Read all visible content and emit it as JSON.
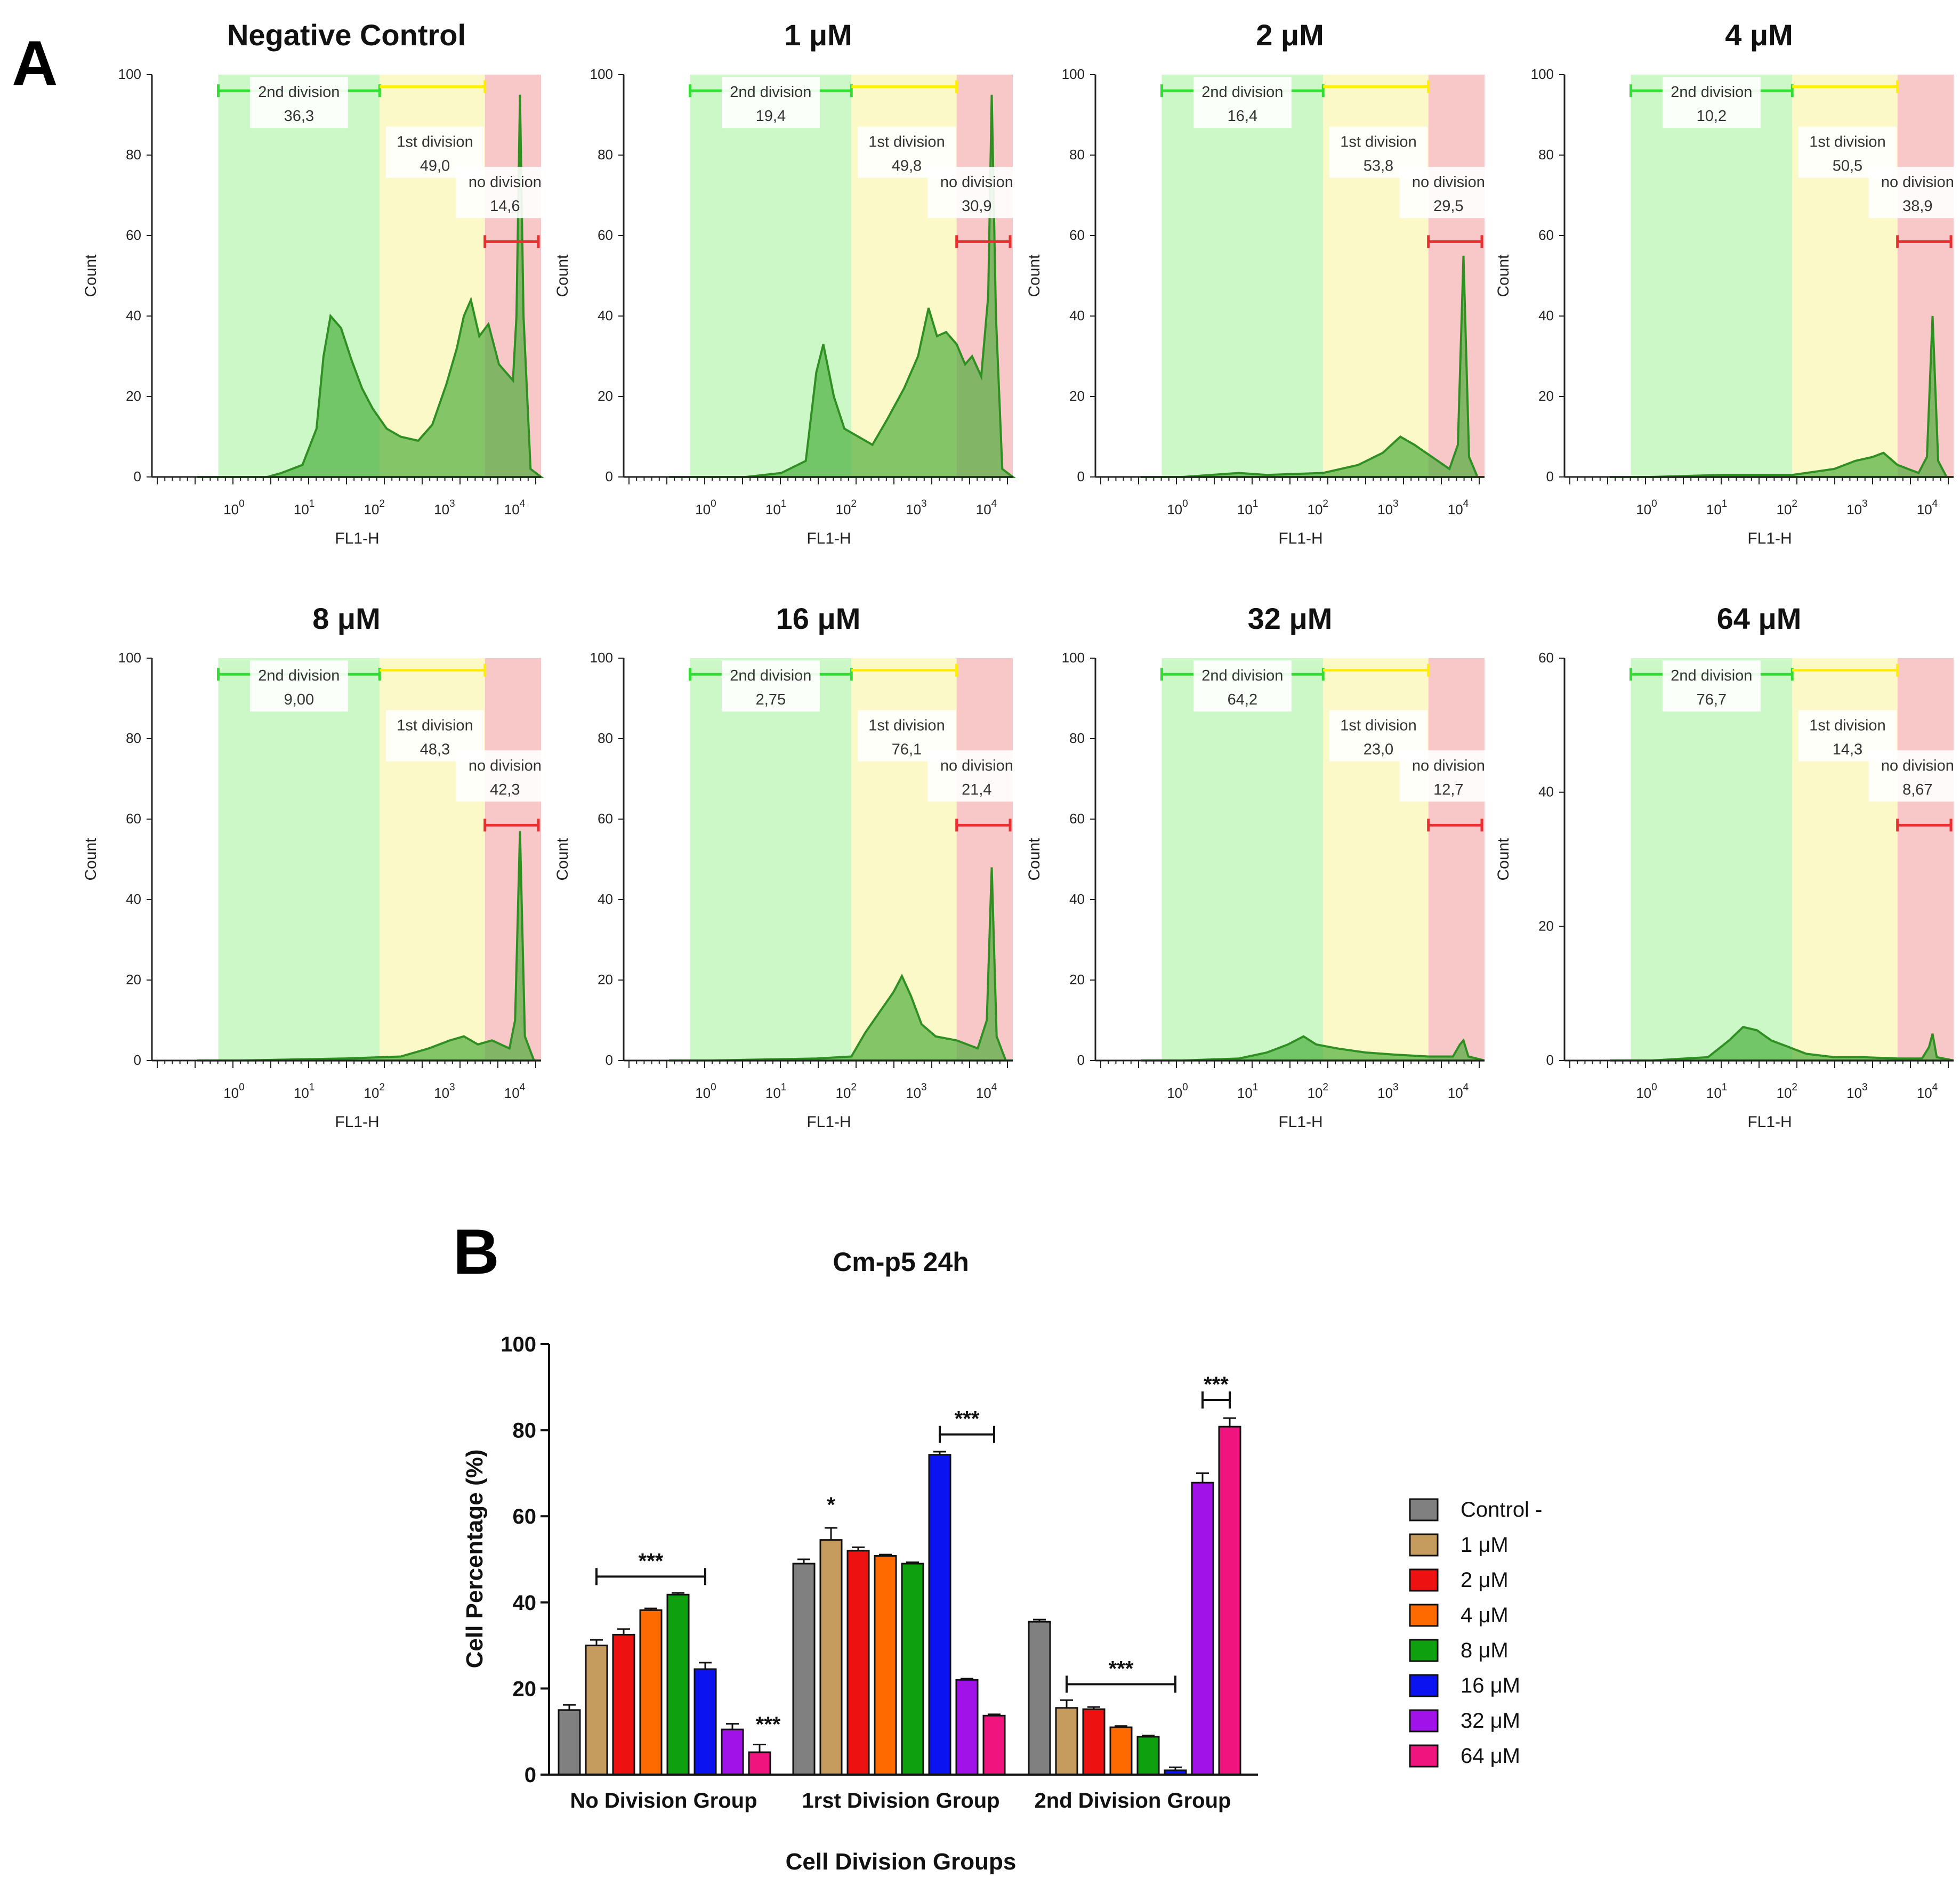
{
  "panel_a_label": "A",
  "panel_b_label": "B",
  "colors": {
    "gate_2nd_fill": "#ccf8c8",
    "gate_1st_fill": "#fbf9c8",
    "gate_none_fill": "#f8c8c8",
    "gate_2nd_line": "#33dd33",
    "gate_1st_line": "#ffee00",
    "gate_none_line": "#e83030",
    "histogram_fill": "#44aa33",
    "histogram_stroke": "#2f8f22"
  },
  "chart_data": [
    {
      "type": "histogram-panels",
      "xlabel": "FL1-H",
      "ylabel": "Count",
      "x_scale": "log",
      "x_ticks": [
        "10^0",
        "10^1",
        "10^2",
        "10^3",
        "10^4"
      ],
      "gate_labels": {
        "second": "2nd division",
        "first": "1st division",
        "none": "no division"
      },
      "panels": [
        {
          "title": "Negative Control",
          "ymax": 100,
          "yticks": [
            0,
            20,
            40,
            60,
            80,
            100
          ],
          "gates": {
            "second": "36,3",
            "first": "49,0",
            "none": "14,6"
          },
          "curve": [
            [
              -0.6,
              0
            ],
            [
              0,
              0
            ],
            [
              0.4,
              0
            ],
            [
              0.6,
              1
            ],
            [
              0.9,
              3
            ],
            [
              1.1,
              12
            ],
            [
              1.2,
              30
            ],
            [
              1.3,
              40
            ],
            [
              1.45,
              37
            ],
            [
              1.6,
              29
            ],
            [
              1.75,
              22
            ],
            [
              1.9,
              17
            ],
            [
              2.1,
              12
            ],
            [
              2.3,
              10
            ],
            [
              2.55,
              9
            ],
            [
              2.75,
              13
            ],
            [
              2.95,
              23
            ],
            [
              3.1,
              32
            ],
            [
              3.2,
              40
            ],
            [
              3.3,
              44
            ],
            [
              3.42,
              35
            ],
            [
              3.55,
              38
            ],
            [
              3.7,
              28
            ],
            [
              3.8,
              26
            ],
            [
              3.9,
              24
            ],
            [
              3.95,
              40
            ],
            [
              4.0,
              95
            ],
            [
              4.05,
              40
            ],
            [
              4.15,
              2
            ],
            [
              4.3,
              0
            ]
          ]
        },
        {
          "title": "1 μM",
          "ymax": 100,
          "yticks": [
            0,
            20,
            40,
            60,
            80,
            100
          ],
          "gates": {
            "second": "19,4",
            "first": "49,8",
            "none": "30,9"
          },
          "curve": [
            [
              -0.6,
              0
            ],
            [
              0,
              0
            ],
            [
              0.5,
              0
            ],
            [
              1.0,
              1
            ],
            [
              1.35,
              4
            ],
            [
              1.5,
              26
            ],
            [
              1.6,
              33
            ],
            [
              1.75,
              20
            ],
            [
              1.9,
              12
            ],
            [
              2.1,
              10
            ],
            [
              2.3,
              8
            ],
            [
              2.5,
              14
            ],
            [
              2.75,
              22
            ],
            [
              2.95,
              30
            ],
            [
              3.1,
              42
            ],
            [
              3.22,
              35
            ],
            [
              3.35,
              36
            ],
            [
              3.5,
              33
            ],
            [
              3.62,
              28
            ],
            [
              3.72,
              30
            ],
            [
              3.85,
              25
            ],
            [
              3.95,
              45
            ],
            [
              4.0,
              95
            ],
            [
              4.06,
              40
            ],
            [
              4.15,
              2
            ],
            [
              4.3,
              0
            ]
          ]
        },
        {
          "title": "2 μM",
          "ymax": 100,
          "yticks": [
            0,
            20,
            40,
            60,
            80,
            100
          ],
          "gates": {
            "second": "16,4",
            "first": "53,8",
            "none": "29,5"
          },
          "curve": [
            [
              -0.6,
              0
            ],
            [
              0,
              0
            ],
            [
              0.8,
              1
            ],
            [
              1.2,
              0.5
            ],
            [
              2.0,
              1
            ],
            [
              2.5,
              3
            ],
            [
              2.85,
              6
            ],
            [
              3.1,
              10
            ],
            [
              3.3,
              8
            ],
            [
              3.55,
              5
            ],
            [
              3.8,
              2
            ],
            [
              3.92,
              8
            ],
            [
              4.0,
              55
            ],
            [
              4.08,
              5
            ],
            [
              4.2,
              0
            ],
            [
              4.3,
              0
            ]
          ]
        },
        {
          "title": "4 μM",
          "ymax": 100,
          "yticks": [
            0,
            20,
            40,
            60,
            80,
            100
          ],
          "gates": {
            "second": "10,2",
            "first": "50,5",
            "none": "38,9"
          },
          "curve": [
            [
              -0.6,
              0
            ],
            [
              0,
              0
            ],
            [
              1.0,
              0.5
            ],
            [
              2.0,
              0.5
            ],
            [
              2.6,
              2
            ],
            [
              2.9,
              4
            ],
            [
              3.15,
              5
            ],
            [
              3.3,
              6
            ],
            [
              3.5,
              3
            ],
            [
              3.8,
              1
            ],
            [
              3.92,
              5
            ],
            [
              4.0,
              40
            ],
            [
              4.08,
              4
            ],
            [
              4.2,
              0
            ],
            [
              4.3,
              0
            ]
          ]
        }
      ]
    },
    {
      "type": "histogram-panels",
      "xlabel": "FL1-H",
      "ylabel": "Count",
      "x_scale": "log",
      "x_ticks": [
        "10^0",
        "10^1",
        "10^2",
        "10^3",
        "10^4"
      ],
      "gate_labels": {
        "second": "2nd division",
        "first": "1st division",
        "none": "no division"
      },
      "panels": [
        {
          "title": "8 μM",
          "ymax": 100,
          "yticks": [
            0,
            20,
            40,
            60,
            80,
            100
          ],
          "gates": {
            "second": "9,00",
            "first": "48,3",
            "none": "42,3"
          },
          "curve": [
            [
              -0.6,
              0
            ],
            [
              0,
              0
            ],
            [
              1.5,
              0.5
            ],
            [
              2.3,
              1
            ],
            [
              2.7,
              3
            ],
            [
              3.0,
              5
            ],
            [
              3.2,
              6
            ],
            [
              3.4,
              4
            ],
            [
              3.6,
              5
            ],
            [
              3.85,
              3
            ],
            [
              3.93,
              10
            ],
            [
              4.0,
              57
            ],
            [
              4.07,
              6
            ],
            [
              4.2,
              0
            ],
            [
              4.3,
              0
            ]
          ]
        },
        {
          "title": "16 μM",
          "ymax": 100,
          "yticks": [
            0,
            20,
            40,
            60,
            80,
            100
          ],
          "gates": {
            "second": "2,75",
            "first": "76,1",
            "none": "21,4"
          },
          "curve": [
            [
              -0.6,
              0
            ],
            [
              0,
              0
            ],
            [
              1.5,
              0.5
            ],
            [
              2.0,
              1
            ],
            [
              2.2,
              7
            ],
            [
              2.4,
              12
            ],
            [
              2.6,
              17
            ],
            [
              2.72,
              21
            ],
            [
              2.85,
              16
            ],
            [
              3.0,
              9
            ],
            [
              3.2,
              6
            ],
            [
              3.5,
              5
            ],
            [
              3.8,
              3
            ],
            [
              3.93,
              10
            ],
            [
              4.0,
              48
            ],
            [
              4.07,
              6
            ],
            [
              4.2,
              0
            ],
            [
              4.3,
              0
            ]
          ]
        },
        {
          "title": "32 μM",
          "ymax": 100,
          "yticks": [
            0,
            20,
            40,
            60,
            80,
            100
          ],
          "gates": {
            "second": "64,2",
            "first": "23,0",
            "none": "12,7"
          },
          "curve": [
            [
              -0.6,
              0
            ],
            [
              0,
              0
            ],
            [
              0.8,
              0.5
            ],
            [
              1.2,
              2
            ],
            [
              1.5,
              4
            ],
            [
              1.72,
              6
            ],
            [
              1.9,
              4
            ],
            [
              2.2,
              3
            ],
            [
              2.6,
              2
            ],
            [
              3.0,
              1.5
            ],
            [
              3.5,
              1
            ],
            [
              3.85,
              1
            ],
            [
              3.95,
              4
            ],
            [
              4.0,
              5
            ],
            [
              4.07,
              1
            ],
            [
              4.3,
              0
            ]
          ]
        },
        {
          "title": "64 μM",
          "ymax": 60,
          "yticks": [
            0,
            20,
            40,
            60
          ],
          "gates": {
            "second": "76,7",
            "first": "14,3",
            "none": "8,67"
          },
          "curve": [
            [
              -0.6,
              0
            ],
            [
              0,
              0
            ],
            [
              0.8,
              0.5
            ],
            [
              1.1,
              3
            ],
            [
              1.3,
              5
            ],
            [
              1.5,
              4.5
            ],
            [
              1.7,
              3
            ],
            [
              1.95,
              2
            ],
            [
              2.2,
              1
            ],
            [
              2.6,
              0.5
            ],
            [
              3.0,
              0.5
            ],
            [
              3.5,
              0.3
            ],
            [
              3.85,
              0.3
            ],
            [
              3.95,
              2
            ],
            [
              4.0,
              4
            ],
            [
              4.06,
              0.5
            ],
            [
              4.3,
              0
            ]
          ]
        }
      ]
    },
    {
      "type": "bar",
      "title": "Cm-p5 24h",
      "xlabel": "Cell Division Groups",
      "ylabel": "Cell Percentage (%)",
      "ylim": [
        0,
        100
      ],
      "yticks": [
        0,
        20,
        40,
        60,
        80,
        100
      ],
      "categories": [
        "No Division Group",
        "1rst Division Group",
        "2nd Division Group"
      ],
      "series": [
        {
          "name": "Control -",
          "color": "#808080",
          "values": [
            15.0,
            49.0,
            35.5
          ],
          "errors": [
            1.2,
            1.0,
            0.5
          ]
        },
        {
          "name": "1 μM",
          "color": "#c69b5e",
          "values": [
            30.0,
            54.5,
            15.5
          ],
          "errors": [
            1.3,
            2.8,
            1.8
          ]
        },
        {
          "name": "2 μM",
          "color": "#ee1111",
          "values": [
            32.5,
            52.0,
            15.2
          ],
          "errors": [
            1.3,
            0.8,
            0.5
          ]
        },
        {
          "name": "4 μM",
          "color": "#ff6a00",
          "values": [
            38.2,
            50.8,
            11.0
          ],
          "errors": [
            0.4,
            0.3,
            0.3
          ]
        },
        {
          "name": "8 μM",
          "color": "#0fa00f",
          "values": [
            41.8,
            49.0,
            8.8
          ],
          "errors": [
            0.4,
            0.3,
            0.3
          ]
        },
        {
          "name": "16 μM",
          "color": "#0b13f0",
          "values": [
            24.5,
            74.3,
            1.0
          ],
          "errors": [
            1.5,
            0.7,
            0.7
          ]
        },
        {
          "name": "32 μM",
          "color": "#a012e8",
          "values": [
            10.5,
            22.0,
            67.8
          ],
          "errors": [
            1.3,
            0.3,
            2.2
          ]
        },
        {
          "name": "64 μM",
          "color": "#f0147f",
          "values": [
            5.2,
            13.7,
            80.8
          ],
          "errors": [
            1.8,
            0.3,
            2.0
          ]
        }
      ],
      "annotations": [
        {
          "text": "***",
          "type": "bracket",
          "group": 0,
          "from_series": 1,
          "to_series": 5,
          "y": 46
        },
        {
          "text": "***",
          "type": "label",
          "group": 0,
          "series": 7,
          "y": 10
        },
        {
          "text": "*",
          "type": "label",
          "group": 1,
          "series": 1,
          "y": 61
        },
        {
          "text": "***",
          "type": "bracket",
          "group": 1,
          "from_series": 5,
          "to_series": 7,
          "y": 79
        },
        {
          "text": "***",
          "type": "bracket",
          "group": 2,
          "from_series": 1,
          "to_series": 5,
          "y": 21
        },
        {
          "text": "***",
          "type": "bracket",
          "group": 2,
          "from_series": 6,
          "to_series": 7,
          "y": 87
        }
      ]
    }
  ]
}
